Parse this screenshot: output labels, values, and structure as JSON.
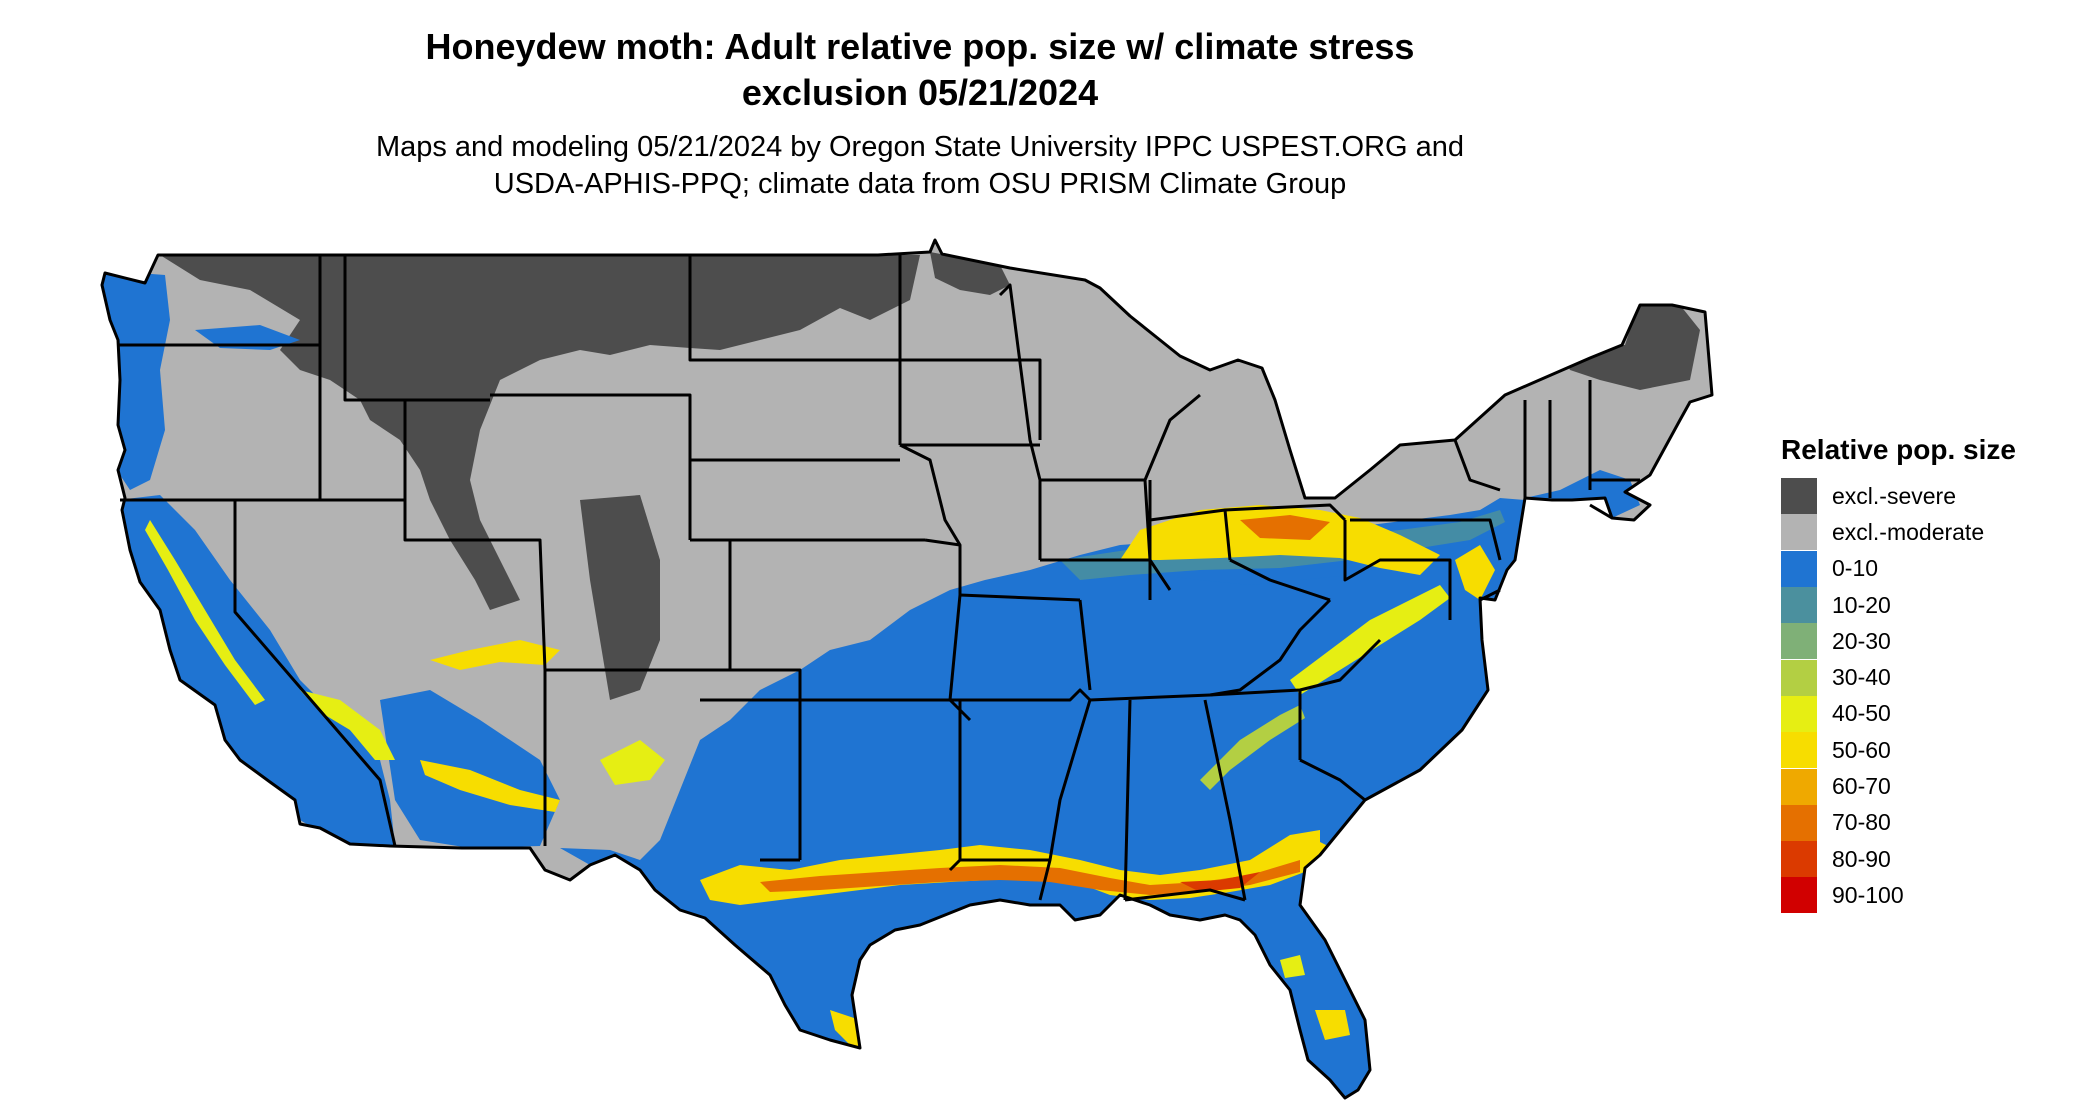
{
  "title": {
    "line1": "Honeydew moth: Adult relative pop. size w/ climate stress",
    "line2": "exclusion 05/21/2024"
  },
  "subtitle": {
    "line1": "Maps and modeling 05/21/2024 by Oregon State University IPPC USPEST.ORG and",
    "line2": "USDA-APHIS-PPQ; climate data from OSU PRISM Climate Group"
  },
  "legend": {
    "title": "Relative pop. size",
    "items": [
      {
        "label": "excl.-severe",
        "color": "#4d4d4d"
      },
      {
        "label": "excl.-moderate",
        "color": "#b3b3b3"
      },
      {
        "label": "0-10",
        "color": "#1f74d2"
      },
      {
        "label": "10-20",
        "color": "#4b909e"
      },
      {
        "label": "20-30",
        "color": "#7fb077"
      },
      {
        "label": "30-40",
        "color": "#b3cf43"
      },
      {
        "label": "40-50",
        "color": "#e6ee13"
      },
      {
        "label": "50-60",
        "color": "#f7dd00"
      },
      {
        "label": "60-70",
        "color": "#efa900"
      },
      {
        "label": "70-80",
        "color": "#e57000"
      },
      {
        "label": "80-90",
        "color": "#db3a00"
      },
      {
        "label": "90-100",
        "color": "#d10000"
      }
    ]
  }
}
